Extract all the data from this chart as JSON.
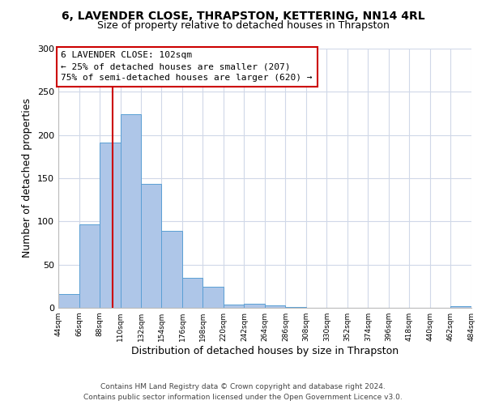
{
  "title": "6, LAVENDER CLOSE, THRAPSTON, KETTERING, NN14 4RL",
  "subtitle": "Size of property relative to detached houses in Thrapston",
  "xlabel": "Distribution of detached houses by size in Thrapston",
  "ylabel": "Number of detached properties",
  "bin_edges": [
    44,
    66,
    88,
    110,
    132,
    154,
    176,
    198,
    220,
    242,
    264,
    286,
    308,
    330,
    352,
    374,
    396,
    418,
    440,
    462,
    484
  ],
  "bin_counts": [
    16,
    97,
    191,
    224,
    143,
    89,
    35,
    24,
    4,
    5,
    3,
    1,
    0,
    0,
    0,
    0,
    0,
    0,
    0,
    2
  ],
  "bar_color": "#aec6e8",
  "bar_edge_color": "#5a9fd4",
  "vline_x": 102,
  "vline_color": "#cc0000",
  "box_text_line1": "6 LAVENDER CLOSE: 102sqm",
  "box_text_line2": "← 25% of detached houses are smaller (207)",
  "box_text_line3": "75% of semi-detached houses are larger (620) →",
  "box_edge_color": "#cc0000",
  "ylim": [
    0,
    300
  ],
  "yticks": [
    0,
    50,
    100,
    150,
    200,
    250,
    300
  ],
  "tick_labels": [
    "44sqm",
    "66sqm",
    "88sqm",
    "110sqm",
    "132sqm",
    "154sqm",
    "176sqm",
    "198sqm",
    "220sqm",
    "242sqm",
    "264sqm",
    "286sqm",
    "308sqm",
    "330sqm",
    "352sqm",
    "374sqm",
    "396sqm",
    "418sqm",
    "440sqm",
    "462sqm",
    "484sqm"
  ],
  "footer_line1": "Contains HM Land Registry data © Crown copyright and database right 2024.",
  "footer_line2": "Contains public sector information licensed under the Open Government Licence v3.0.",
  "background_color": "#ffffff",
  "grid_color": "#d0d8e8"
}
